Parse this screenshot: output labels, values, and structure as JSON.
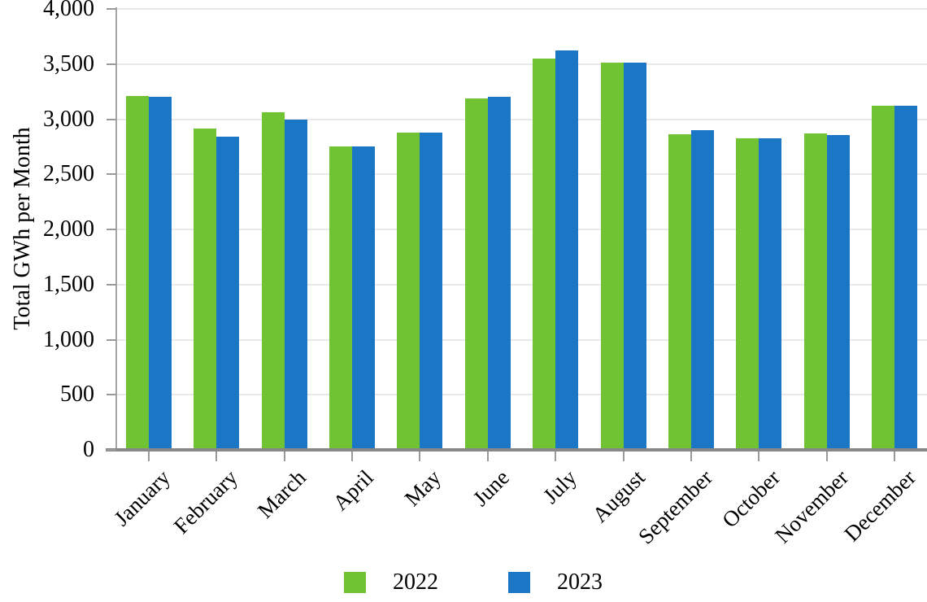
{
  "chart_data": {
    "type": "bar",
    "title": "",
    "xlabel": "",
    "ylabel": "Total GWh per Month",
    "ylim": [
      0,
      4000
    ],
    "grid": "horizontal",
    "legend_position": "bottom",
    "y_ticks": [
      0,
      500,
      1000,
      1500,
      2000,
      2500,
      3000,
      3500,
      4000
    ],
    "y_tick_labels": [
      "0",
      "500",
      "1,000",
      "1,500",
      "2,000",
      "2,500",
      "3,000",
      "3,500",
      "4,000"
    ],
    "categories": [
      "January",
      "February",
      "March",
      "April",
      "May",
      "June",
      "July",
      "August",
      "September",
      "October",
      "November",
      "December"
    ],
    "series": [
      {
        "name": "2022",
        "color": "#70c433",
        "values": [
          3210,
          2915,
          3065,
          2755,
          2875,
          3185,
          3550,
          3510,
          2865,
          2830,
          2870,
          3120
        ]
      },
      {
        "name": "2023",
        "color": "#1b76c5",
        "values": [
          3200,
          2845,
          2995,
          2755,
          2875,
          3200,
          3625,
          3510,
          2900,
          2830,
          2855,
          3120
        ]
      }
    ]
  },
  "colors": {
    "gridline": "#e9e9e9",
    "axis_line": "#a6a6a6",
    "baseline": "#888888",
    "text": "#000000"
  }
}
